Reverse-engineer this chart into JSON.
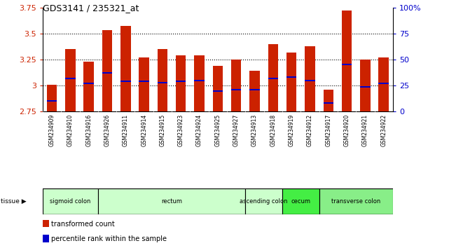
{
  "title": "GDS3141 / 235321_at",
  "samples": [
    "GSM234909",
    "GSM234910",
    "GSM234916",
    "GSM234926",
    "GSM234911",
    "GSM234914",
    "GSM234915",
    "GSM234923",
    "GSM234924",
    "GSM234925",
    "GSM234927",
    "GSM234913",
    "GSM234918",
    "GSM234919",
    "GSM234912",
    "GSM234917",
    "GSM234920",
    "GSM234921",
    "GSM234922"
  ],
  "bar_values": [
    3.01,
    3.35,
    3.23,
    3.53,
    3.57,
    3.27,
    3.35,
    3.29,
    3.29,
    3.19,
    3.25,
    3.14,
    3.4,
    3.32,
    3.38,
    2.96,
    3.72,
    3.25,
    3.27
  ],
  "percentile_values": [
    2.85,
    3.07,
    3.02,
    3.12,
    3.04,
    3.04,
    3.03,
    3.04,
    3.05,
    2.95,
    2.96,
    2.96,
    3.07,
    3.08,
    3.05,
    2.83,
    3.2,
    2.99,
    3.02
  ],
  "bar_color": "#cc2200",
  "percentile_color": "#0000cc",
  "ymin": 2.75,
  "ymax": 3.75,
  "yticks": [
    2.75,
    3.0,
    3.25,
    3.5,
    3.75
  ],
  "ytick_labels": [
    "2.75",
    "3",
    "3.25",
    "3.5",
    "3.75"
  ],
  "right_yticks": [
    0,
    25,
    50,
    75,
    100
  ],
  "right_ytick_labels": [
    "0",
    "25",
    "50",
    "75",
    "100%"
  ],
  "grid_values": [
    3.0,
    3.25,
    3.5
  ],
  "tissue_groups": [
    {
      "label": "sigmoid colon",
      "start": 0,
      "end": 3,
      "color": "#ccffcc"
    },
    {
      "label": "rectum",
      "start": 3,
      "end": 11,
      "color": "#ccffcc"
    },
    {
      "label": "ascending colon",
      "start": 11,
      "end": 13,
      "color": "#ccffcc"
    },
    {
      "label": "cecum",
      "start": 13,
      "end": 15,
      "color": "#44ee44"
    },
    {
      "label": "transverse colon",
      "start": 15,
      "end": 19,
      "color": "#88ee88"
    }
  ],
  "tissue_label": "tissue",
  "xlabel_bg": "#d0d0d0",
  "legend_items": [
    {
      "label": "transformed count",
      "color": "#cc2200"
    },
    {
      "label": "percentile rank within the sample",
      "color": "#0000cc"
    }
  ]
}
